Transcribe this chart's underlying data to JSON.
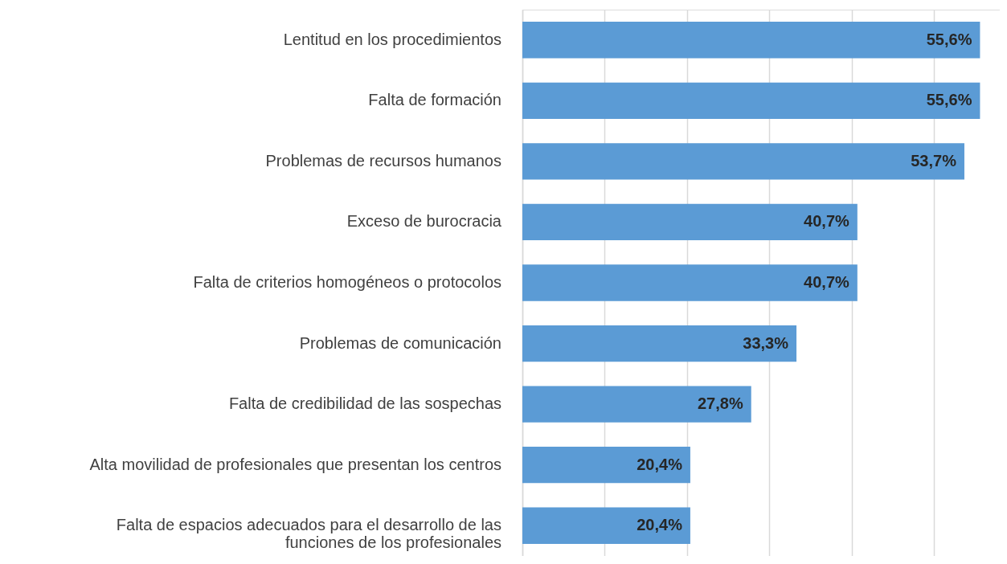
{
  "chart_data": {
    "type": "bar",
    "orientation": "horizontal",
    "categories": [
      "Lentitud en los procedimientos",
      "Falta de formación",
      "Problemas de recursos humanos",
      "Exceso de burocracia",
      "Falta de criterios homogéneos o protocolos",
      "Problemas de comunicación",
      "Falta de credibilidad de las sospechas",
      "Alta movilidad de profesionales que presentan los centros",
      "Falta de espacios adecuados para el desarrollo de las funciones de los profesionales"
    ],
    "values": [
      55.6,
      55.6,
      53.7,
      40.7,
      40.7,
      33.3,
      27.8,
      20.4,
      20.4
    ],
    "value_labels": [
      "55,6%",
      "55,6%",
      "53,7%",
      "40,7%",
      "40,7%",
      "33,3%",
      "27,8%",
      "20,4%",
      "20,4%"
    ],
    "color": "#5b9bd5",
    "xlim": [
      0,
      58
    ],
    "xticks": [
      {
        "value": 0,
        "label": null
      },
      {
        "value": 10,
        "label": null
      },
      {
        "value": 20,
        "label": null
      },
      {
        "value": 30,
        "label": null
      },
      {
        "value": 40,
        "label": null
      },
      {
        "value": 50,
        "label": null
      }
    ],
    "grid": "x"
  }
}
